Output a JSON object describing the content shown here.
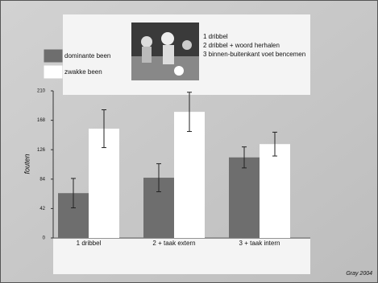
{
  "chart_data": {
    "type": "bar",
    "categories": [
      "1 dribbel",
      "2 + taak extern",
      "3 + taak intern"
    ],
    "series": [
      {
        "name": "dominante been",
        "color": "#6e6e6e",
        "values": [
          64,
          86,
          115
        ],
        "errors": [
          21,
          20,
          15
        ]
      },
      {
        "name": "zwakke been",
        "color": "#ffffff",
        "values": [
          156,
          180,
          134
        ],
        "errors": [
          27,
          28,
          17
        ]
      }
    ],
    "ylabel": "fouten",
    "ylim": [
      0,
      210
    ],
    "yticks": [
      0,
      42,
      84,
      126,
      168,
      210
    ],
    "photo_caption": [
      "1 dribbel",
      "2 dribbel + woord herhalen",
      "3 binnen-buitenkant voet bencemen"
    ],
    "credit": "Gray 2004"
  }
}
